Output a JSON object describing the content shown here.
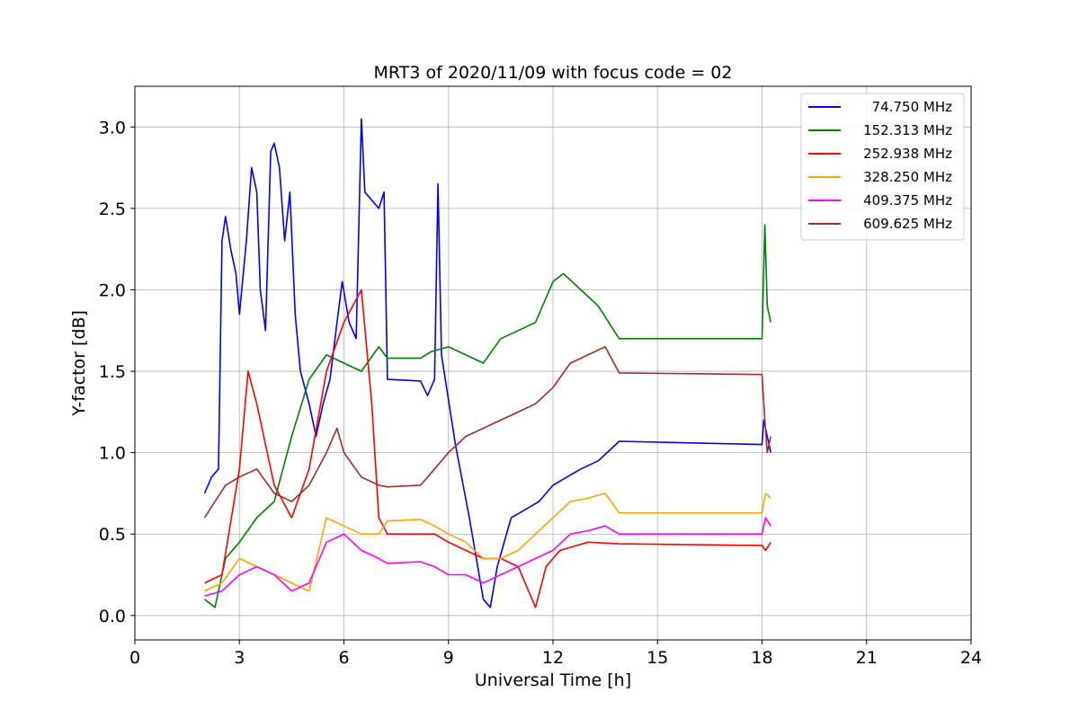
{
  "chart_data": {
    "type": "line",
    "title": "MRT3 of 2020/11/09 with focus code = 02",
    "xlabel": "Universal Time [h]",
    "ylabel": "Y-factor [dB]",
    "xlim": [
      0,
      24
    ],
    "ylim": [
      -0.15,
      3.25
    ],
    "xticks": [
      0,
      3,
      6,
      9,
      12,
      15,
      18,
      21,
      24
    ],
    "xtick_labels": [
      "0",
      "3",
      "6",
      "9",
      "12",
      "15",
      "18",
      "21",
      "24"
    ],
    "yticks": [
      0.0,
      0.5,
      1.0,
      1.5,
      2.0,
      2.5,
      3.0
    ],
    "ytick_labels": [
      "0.0",
      "0.5",
      "1.0",
      "1.5",
      "2.0",
      "2.5",
      "3.0"
    ],
    "grid": true,
    "legend_position": "top-right",
    "series": [
      {
        "name": " 74.750 MHz",
        "color": "#0000ff",
        "points": [
          [
            2.0,
            0.75
          ],
          [
            2.2,
            0.85
          ],
          [
            2.4,
            0.9
          ],
          [
            2.5,
            2.3
          ],
          [
            2.6,
            2.45
          ],
          [
            2.75,
            2.25
          ],
          [
            2.9,
            2.1
          ],
          [
            3.0,
            1.85
          ],
          [
            3.2,
            2.3
          ],
          [
            3.35,
            2.75
          ],
          [
            3.5,
            2.6
          ],
          [
            3.6,
            2.0
          ],
          [
            3.75,
            1.75
          ],
          [
            3.9,
            2.85
          ],
          [
            4.0,
            2.9
          ],
          [
            4.15,
            2.75
          ],
          [
            4.3,
            2.3
          ],
          [
            4.45,
            2.6
          ],
          [
            4.6,
            1.85
          ],
          [
            4.75,
            1.5
          ],
          [
            5.0,
            1.3
          ],
          [
            5.2,
            1.1
          ],
          [
            5.4,
            1.3
          ],
          [
            5.6,
            1.45
          ],
          [
            5.8,
            1.8
          ],
          [
            5.95,
            2.05
          ],
          [
            6.15,
            1.8
          ],
          [
            6.35,
            1.7
          ],
          [
            6.5,
            3.05
          ],
          [
            6.6,
            2.6
          ],
          [
            6.8,
            2.55
          ],
          [
            7.0,
            2.5
          ],
          [
            7.15,
            2.6
          ],
          [
            7.25,
            1.45
          ],
          [
            8.2,
            1.44
          ],
          [
            8.4,
            1.35
          ],
          [
            8.6,
            1.45
          ],
          [
            8.7,
            2.65
          ],
          [
            8.8,
            1.6
          ],
          [
            9.2,
            1.05
          ],
          [
            9.6,
            0.6
          ],
          [
            10.0,
            0.1
          ],
          [
            10.2,
            0.05
          ],
          [
            10.4,
            0.3
          ],
          [
            10.8,
            0.6
          ],
          [
            11.2,
            0.65
          ],
          [
            11.6,
            0.7
          ],
          [
            12.0,
            0.8
          ],
          [
            12.4,
            0.85
          ],
          [
            12.8,
            0.9
          ],
          [
            13.3,
            0.95
          ],
          [
            13.9,
            1.07
          ],
          [
            18.0,
            1.05
          ],
          [
            18.05,
            1.2
          ],
          [
            18.15,
            1.1
          ],
          [
            18.25,
            1.0
          ]
        ]
      },
      {
        "name": "152.313 MHz",
        "color": "#008000",
        "points": [
          [
            2.0,
            0.1
          ],
          [
            2.3,
            0.05
          ],
          [
            2.6,
            0.35
          ],
          [
            3.0,
            0.45
          ],
          [
            3.5,
            0.6
          ],
          [
            4.0,
            0.7
          ],
          [
            4.5,
            1.1
          ],
          [
            5.0,
            1.45
          ],
          [
            5.5,
            1.6
          ],
          [
            6.0,
            1.55
          ],
          [
            6.5,
            1.5
          ],
          [
            7.0,
            1.65
          ],
          [
            7.25,
            1.58
          ],
          [
            8.2,
            1.58
          ],
          [
            8.5,
            1.62
          ],
          [
            9.0,
            1.65
          ],
          [
            9.5,
            1.6
          ],
          [
            10.0,
            1.55
          ],
          [
            10.5,
            1.7
          ],
          [
            11.0,
            1.75
          ],
          [
            11.5,
            1.8
          ],
          [
            12.0,
            2.05
          ],
          [
            12.3,
            2.1
          ],
          [
            12.8,
            2.0
          ],
          [
            13.3,
            1.9
          ],
          [
            13.9,
            1.7
          ],
          [
            18.0,
            1.7
          ],
          [
            18.08,
            2.4
          ],
          [
            18.15,
            1.9
          ],
          [
            18.25,
            1.8
          ]
        ]
      },
      {
        "name": "252.938 MHz",
        "color": "#ff0000",
        "points": [
          [
            2.0,
            0.2
          ],
          [
            2.5,
            0.25
          ],
          [
            3.0,
            0.9
          ],
          [
            3.25,
            1.5
          ],
          [
            3.5,
            1.3
          ],
          [
            4.0,
            0.8
          ],
          [
            4.5,
            0.6
          ],
          [
            5.0,
            0.9
          ],
          [
            5.5,
            1.5
          ],
          [
            6.0,
            1.8
          ],
          [
            6.5,
            2.0
          ],
          [
            6.8,
            1.3
          ],
          [
            7.0,
            0.6
          ],
          [
            7.25,
            0.5
          ],
          [
            8.2,
            0.5
          ],
          [
            8.6,
            0.5
          ],
          [
            9.0,
            0.45
          ],
          [
            9.5,
            0.4
          ],
          [
            10.0,
            0.35
          ],
          [
            10.5,
            0.35
          ],
          [
            11.0,
            0.3
          ],
          [
            11.5,
            0.05
          ],
          [
            11.8,
            0.3
          ],
          [
            12.2,
            0.4
          ],
          [
            13.0,
            0.45
          ],
          [
            13.9,
            0.44
          ],
          [
            18.0,
            0.43
          ],
          [
            18.1,
            0.4
          ],
          [
            18.25,
            0.45
          ]
        ]
      },
      {
        "name": "328.250 MHz",
        "color": "#ffa500",
        "points": [
          [
            2.0,
            0.15
          ],
          [
            2.5,
            0.2
          ],
          [
            3.0,
            0.35
          ],
          [
            3.5,
            0.3
          ],
          [
            4.0,
            0.25
          ],
          [
            4.5,
            0.2
          ],
          [
            5.0,
            0.15
          ],
          [
            5.5,
            0.6
          ],
          [
            6.0,
            0.55
          ],
          [
            6.5,
            0.5
          ],
          [
            7.0,
            0.5
          ],
          [
            7.25,
            0.58
          ],
          [
            8.2,
            0.59
          ],
          [
            8.6,
            0.55
          ],
          [
            9.0,
            0.5
          ],
          [
            9.5,
            0.45
          ],
          [
            10.0,
            0.35
          ],
          [
            10.5,
            0.35
          ],
          [
            11.0,
            0.4
          ],
          [
            11.5,
            0.5
          ],
          [
            12.0,
            0.6
          ],
          [
            12.5,
            0.7
          ],
          [
            13.0,
            0.72
          ],
          [
            13.5,
            0.75
          ],
          [
            13.9,
            0.63
          ],
          [
            18.0,
            0.63
          ],
          [
            18.1,
            0.75
          ],
          [
            18.25,
            0.72
          ]
        ]
      },
      {
        "name": "409.375 MHz",
        "color": "#ff00ff",
        "points": [
          [
            2.0,
            0.12
          ],
          [
            2.5,
            0.15
          ],
          [
            3.0,
            0.25
          ],
          [
            3.5,
            0.3
          ],
          [
            4.0,
            0.25
          ],
          [
            4.5,
            0.15
          ],
          [
            5.0,
            0.2
          ],
          [
            5.5,
            0.45
          ],
          [
            6.0,
            0.5
          ],
          [
            6.5,
            0.4
          ],
          [
            7.0,
            0.35
          ],
          [
            7.25,
            0.32
          ],
          [
            8.2,
            0.33
          ],
          [
            8.6,
            0.3
          ],
          [
            9.0,
            0.25
          ],
          [
            9.5,
            0.25
          ],
          [
            10.0,
            0.2
          ],
          [
            10.5,
            0.25
          ],
          [
            11.0,
            0.3
          ],
          [
            11.5,
            0.35
          ],
          [
            12.0,
            0.4
          ],
          [
            12.5,
            0.5
          ],
          [
            13.0,
            0.52
          ],
          [
            13.5,
            0.55
          ],
          [
            13.9,
            0.5
          ],
          [
            18.0,
            0.5
          ],
          [
            18.1,
            0.6
          ],
          [
            18.25,
            0.55
          ]
        ]
      },
      {
        "name": "609.625 MHz",
        "color": "#a52a2a",
        "points": [
          [
            2.0,
            0.6
          ],
          [
            2.3,
            0.7
          ],
          [
            2.6,
            0.8
          ],
          [
            3.0,
            0.85
          ],
          [
            3.5,
            0.9
          ],
          [
            4.0,
            0.75
          ],
          [
            4.5,
            0.7
          ],
          [
            5.0,
            0.8
          ],
          [
            5.5,
            1.0
          ],
          [
            5.8,
            1.15
          ],
          [
            6.0,
            1.0
          ],
          [
            6.5,
            0.85
          ],
          [
            7.0,
            0.8
          ],
          [
            7.25,
            0.79
          ],
          [
            8.2,
            0.8
          ],
          [
            8.6,
            0.9
          ],
          [
            9.0,
            1.0
          ],
          [
            9.5,
            1.1
          ],
          [
            10.0,
            1.15
          ],
          [
            10.5,
            1.2
          ],
          [
            11.0,
            1.25
          ],
          [
            11.5,
            1.3
          ],
          [
            12.0,
            1.4
          ],
          [
            12.5,
            1.55
          ],
          [
            13.0,
            1.6
          ],
          [
            13.5,
            1.65
          ],
          [
            13.9,
            1.49
          ],
          [
            18.0,
            1.48
          ],
          [
            18.08,
            1.2
          ],
          [
            18.15,
            1.0
          ],
          [
            18.25,
            1.1
          ]
        ]
      }
    ]
  }
}
